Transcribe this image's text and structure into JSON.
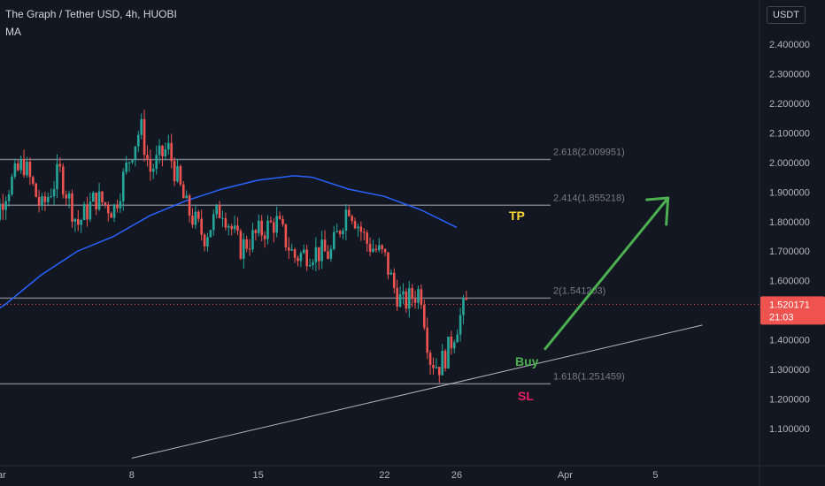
{
  "header": {
    "title": "The Graph / Tether USD, 4h, HUOBI",
    "indicator": "MA",
    "currency": "USDT"
  },
  "price_tag": {
    "value": "1.520171",
    "countdown": "21:03"
  },
  "annotations": {
    "tp": "TP",
    "buy": "Buy",
    "sl": "SL"
  },
  "colors": {
    "background": "#131722",
    "up": "#26a69a",
    "down": "#ef5350",
    "ma": "#2962ff",
    "tp": "#fdd835",
    "buy": "#4caf50",
    "sl": "#e91e63",
    "fib_line": "#787b86",
    "trendline": "#b2b5be",
    "arrow": "#4caf50"
  },
  "chart_data": {
    "type": "candlestick",
    "yaxis": {
      "ticks": [
        "2.400000",
        "2.300000",
        "2.200000",
        "2.100000",
        "2.000000",
        "1.900000",
        "1.800000",
        "1.700000",
        "1.600000",
        "1.500000",
        "1.400000",
        "1.300000",
        "1.200000",
        "1.100000"
      ],
      "range": [
        1.0,
        2.5
      ]
    },
    "xaxis": {
      "ticks": [
        "ar",
        "8",
        "15",
        "22",
        "26",
        "Apr",
        "5"
      ]
    },
    "fib_levels": [
      {
        "label": "2.618(2.009951)",
        "price": 2.009951
      },
      {
        "label": "2.414(1.855218)",
        "price": 1.855218
      },
      {
        "label": "2(1.541203)",
        "price": 1.541203
      },
      {
        "label": "1.618(1.251459)",
        "price": 1.251459
      }
    ],
    "trendline": {
      "from": {
        "date": "Mar 8",
        "price": 1.0
      },
      "to": {
        "date": "Apr 8",
        "price": 1.45
      }
    },
    "arrow": {
      "from": {
        "date": "Mar 31",
        "price": 1.37
      },
      "to": {
        "date": "Apr 4",
        "price": 1.88
      }
    },
    "current_price": 1.520171,
    "ma_path": [
      [
        -1,
        1.44
      ],
      [
        1,
        1.52
      ],
      [
        3,
        1.62
      ],
      [
        5,
        1.7
      ],
      [
        7,
        1.75
      ],
      [
        9,
        1.82
      ],
      [
        11,
        1.87
      ],
      [
        13,
        1.91
      ],
      [
        15,
        1.94
      ],
      [
        17,
        1.955
      ],
      [
        18,
        1.95
      ],
      [
        20,
        1.91
      ],
      [
        22,
        1.885
      ],
      [
        24,
        1.84
      ],
      [
        26,
        1.78
      ]
    ],
    "price_path": [
      [
        -1,
        1.6
      ],
      [
        1,
        1.9
      ],
      [
        2,
        2.0
      ],
      [
        3,
        1.84
      ],
      [
        4,
        1.97
      ],
      [
        5,
        1.79
      ],
      [
        6,
        1.88
      ],
      [
        7,
        1.84
      ],
      [
        8,
        2.04
      ],
      [
        8.5,
        2.12
      ],
      [
        9,
        1.97
      ],
      [
        10,
        2.05
      ],
      [
        11,
        1.85
      ],
      [
        12,
        1.75
      ],
      [
        13,
        1.85
      ],
      [
        14,
        1.71
      ],
      [
        15,
        1.76
      ],
      [
        16,
        1.8
      ],
      [
        17,
        1.68
      ],
      [
        18,
        1.7
      ],
      [
        19,
        1.69
      ],
      [
        20,
        1.86
      ],
      [
        21,
        1.73
      ],
      [
        22,
        1.68
      ],
      [
        22.5,
        1.58
      ],
      [
        23,
        1.52
      ],
      [
        24,
        1.57
      ],
      [
        24.5,
        1.34
      ],
      [
        25,
        1.31
      ],
      [
        25.5,
        1.36
      ],
      [
        26,
        1.45
      ],
      [
        26.5,
        1.52
      ]
    ]
  }
}
